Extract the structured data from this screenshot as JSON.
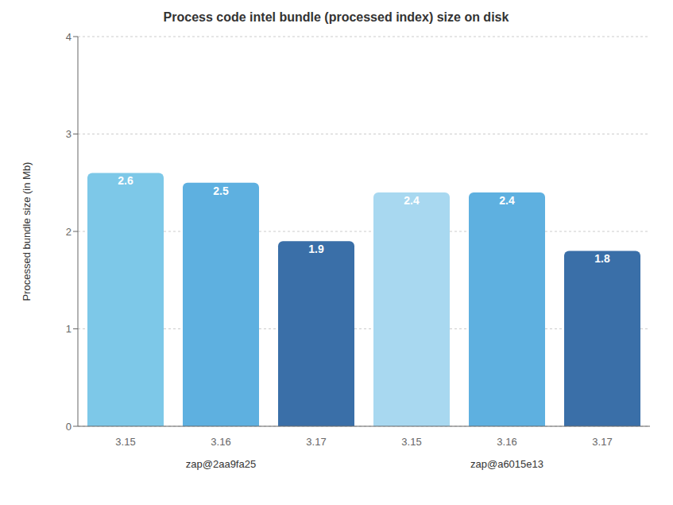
{
  "chart_data": {
    "type": "bar",
    "title": "Process code intel bundle (processed index) size on disk",
    "y_label": "Processed bundle size (in Mb)",
    "categories": [
      "3.15",
      "3.16",
      "3.17",
      "3.15",
      "3.16",
      "3.17"
    ],
    "values": [
      2.6,
      2.5,
      1.9,
      2.4,
      2.4,
      1.8
    ],
    "colors": [
      "#7DC8E8",
      "#5EB0E0",
      "#3A6FA8",
      "#A8D8F0",
      "#5EB0E0",
      "#3A6FA8"
    ],
    "annotations": [
      "zap@2aa9fa25",
      "zap@a6015e13"
    ],
    "ylim": [
      0,
      4
    ],
    "yticks": [
      0,
      1,
      2,
      3,
      4
    ],
    "grid": true,
    "data_labels": true
  }
}
